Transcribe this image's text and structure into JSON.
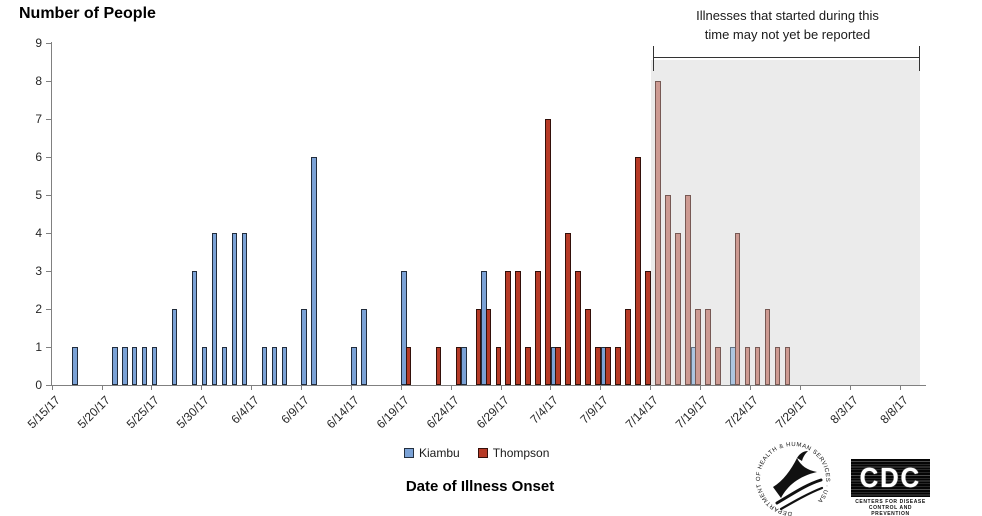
{
  "title": "Number of People",
  "x_axis_title": "Date of Illness Onset",
  "annotation": {
    "line1": "Illnesses that started during this",
    "line2": "time may not yet be reported"
  },
  "legend": [
    {
      "label": "Kiambu",
      "series": "kiambu"
    },
    {
      "label": "Thompson",
      "series": "thompson"
    }
  ],
  "colors": {
    "kiambu": "#7BA2D6",
    "thompson": "#B63A26",
    "kiambu_faded": "#ADC5E0",
    "thompson_faded": "#CD9A92",
    "shade": "#EBEBEB",
    "axis": "#808080"
  },
  "chart_data": {
    "type": "bar",
    "title": "Number of People",
    "xlabel": "Date of Illness Onset",
    "ylabel": "Number of People",
    "ylim": [
      0,
      9
    ],
    "y_tick_step": 1,
    "grid": false,
    "legend_position": "bottom-center",
    "x_tick_labels": [
      "5/15/17",
      "5/20/17",
      "5/25/17",
      "5/30/17",
      "6/4/17",
      "6/9/17",
      "6/14/17",
      "6/19/17",
      "6/24/17",
      "6/29/17",
      "7/4/17",
      "7/9/17",
      "7/14/17",
      "7/19/17",
      "7/24/17",
      "7/29/17",
      "8/3/17",
      "8/8/17"
    ],
    "series": [
      {
        "name": "Kiambu",
        "key": "kiambu",
        "points": [
          [
            "5/17/17",
            1
          ],
          [
            "5/21/17",
            1
          ],
          [
            "5/22/17",
            1
          ],
          [
            "5/23/17",
            1
          ],
          [
            "5/24/17",
            1
          ],
          [
            "5/25/17",
            1
          ],
          [
            "5/27/17",
            2
          ],
          [
            "5/29/17",
            3
          ],
          [
            "5/30/17",
            1
          ],
          [
            "5/31/17",
            4
          ],
          [
            "6/1/17",
            1
          ],
          [
            "6/2/17",
            4
          ],
          [
            "6/3/17",
            4
          ],
          [
            "6/5/17",
            1
          ],
          [
            "6/6/17",
            1
          ],
          [
            "6/7/17",
            1
          ],
          [
            "6/9/17",
            2
          ],
          [
            "6/10/17",
            6
          ],
          [
            "6/14/17",
            1
          ],
          [
            "6/15/17",
            2
          ],
          [
            "6/19/17",
            3
          ],
          [
            "6/25/17",
            1
          ],
          [
            "6/27/17",
            3
          ],
          [
            "7/4/17",
            1
          ],
          [
            "7/9/17",
            1
          ],
          [
            "7/18/17",
            1
          ],
          [
            "7/22/17",
            1
          ]
        ]
      },
      {
        "name": "Thompson",
        "key": "thompson",
        "points": [
          [
            "6/19/17",
            1
          ],
          [
            "6/22/17",
            1
          ],
          [
            "6/24/17",
            1
          ],
          [
            "6/26/17",
            2
          ],
          [
            "6/27/17",
            2
          ],
          [
            "6/28/17",
            1
          ],
          [
            "6/29/17",
            3
          ],
          [
            "6/30/17",
            3
          ],
          [
            "7/1/17",
            1
          ],
          [
            "7/2/17",
            3
          ],
          [
            "7/3/17",
            7
          ],
          [
            "7/4/17",
            1
          ],
          [
            "7/5/17",
            4
          ],
          [
            "7/6/17",
            3
          ],
          [
            "7/7/17",
            2
          ],
          [
            "7/8/17",
            1
          ],
          [
            "7/9/17",
            1
          ],
          [
            "7/10/17",
            1
          ],
          [
            "7/11/17",
            2
          ],
          [
            "7/12/17",
            6
          ],
          [
            "7/13/17",
            3
          ],
          [
            "7/14/17",
            8
          ],
          [
            "7/15/17",
            5
          ],
          [
            "7/16/17",
            4
          ],
          [
            "7/17/17",
            5
          ],
          [
            "7/18/17",
            2
          ],
          [
            "7/19/17",
            2
          ],
          [
            "7/20/17",
            1
          ],
          [
            "7/22/17",
            4
          ],
          [
            "7/23/17",
            1
          ],
          [
            "7/24/17",
            1
          ],
          [
            "7/25/17",
            2
          ],
          [
            "7/26/17",
            1
          ],
          [
            "7/27/17",
            1
          ]
        ]
      }
    ],
    "shaded_region": {
      "from": "7/14/17",
      "note": "Illnesses that started during this time may not yet be reported"
    }
  },
  "logos": {
    "hhs_circle_text": "DEPARTMENT OF HEALTH & HUMAN SERVICES · USA",
    "cdc_text": "CDC",
    "cdc_caption_line1": "CENTERS FOR DISEASE",
    "cdc_caption_line2": "CONTROL AND PREVENTION"
  }
}
